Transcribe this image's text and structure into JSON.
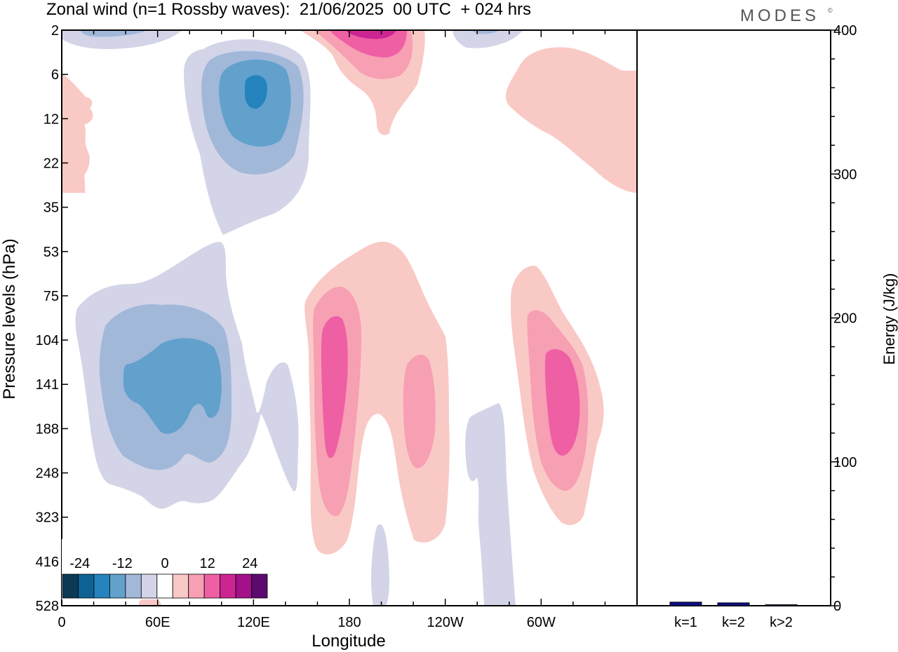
{
  "header": {
    "title": "Zonal wind (n=1 Rossby waves):  21/06/2025  00 UTC  + 024 hrs",
    "brand": "MODES",
    "brand_mark": "©"
  },
  "colors": {
    "scale": [
      "#0c3a55",
      "#0e6194",
      "#2583bd",
      "#62a1cc",
      "#a2b8d9",
      "#d3d4e7",
      "#ffffff",
      "#f9c9c6",
      "#f79fb3",
      "#ee5fa4",
      "#cc2592",
      "#a3108a",
      "#5b0a70"
    ],
    "bar": "#0d0d8a"
  },
  "chart_data": [
    {
      "type": "heatmap",
      "title": "Zonal wind (n=1 Rossby waves):  21/06/2025  00 UTC  + 024 hrs",
      "xlabel": "Longitude",
      "ylabel": "Pressure levels (hPa)",
      "x_ticks": [
        "0",
        "60E",
        "120E",
        "180",
        "120W",
        "60W"
      ],
      "y_ticks": [
        "2",
        "6",
        "12",
        "22",
        "35",
        "53",
        "75",
        "104",
        "141",
        "188",
        "248",
        "323",
        "416",
        "528"
      ],
      "colorbar": {
        "labels": [
          "-24",
          "-12",
          "0",
          "12",
          "24"
        ],
        "levels": [
          -30,
          -25,
          -20,
          -15,
          -10,
          -5,
          0,
          5,
          10,
          15,
          20,
          25,
          30
        ]
      },
      "features": [
        {
          "sign": "negative",
          "peak": -25,
          "lon": 120,
          "plev": 8
        },
        {
          "sign": "negative",
          "peak": -15,
          "lon": 50,
          "plev": 3
        },
        {
          "sign": "positive",
          "peak": 20,
          "lon": 185,
          "plev": 2
        },
        {
          "sign": "positive",
          "peak": 5,
          "lon": 4,
          "plev": 15
        },
        {
          "sign": "positive",
          "peak": 5,
          "lon": 305,
          "plev": 12
        },
        {
          "sign": "negative",
          "peak": -15,
          "lon": 60,
          "plev": 141
        },
        {
          "sign": "negative",
          "peak": -5,
          "lon": 130,
          "plev": 160
        },
        {
          "sign": "positive",
          "peak": 15,
          "lon": 170,
          "plev": 141
        },
        {
          "sign": "positive",
          "peak": 10,
          "lon": 215,
          "plev": 160
        },
        {
          "sign": "positive",
          "peak": 15,
          "lon": 300,
          "plev": 141
        },
        {
          "sign": "negative",
          "peak": -5,
          "lon": 265,
          "plev": 300
        },
        {
          "sign": "negative",
          "peak": -5,
          "lon": 200,
          "plev": 450
        }
      ]
    },
    {
      "type": "bar",
      "categories": [
        "k=1",
        "k=2",
        "k>2"
      ],
      "values": [
        2.5,
        2,
        0.7
      ],
      "ylabel": "Energy (J/kg)",
      "ylim": [
        0,
        400
      ],
      "y_ticks": [
        "0",
        "100",
        "200",
        "300",
        "400"
      ]
    }
  ]
}
